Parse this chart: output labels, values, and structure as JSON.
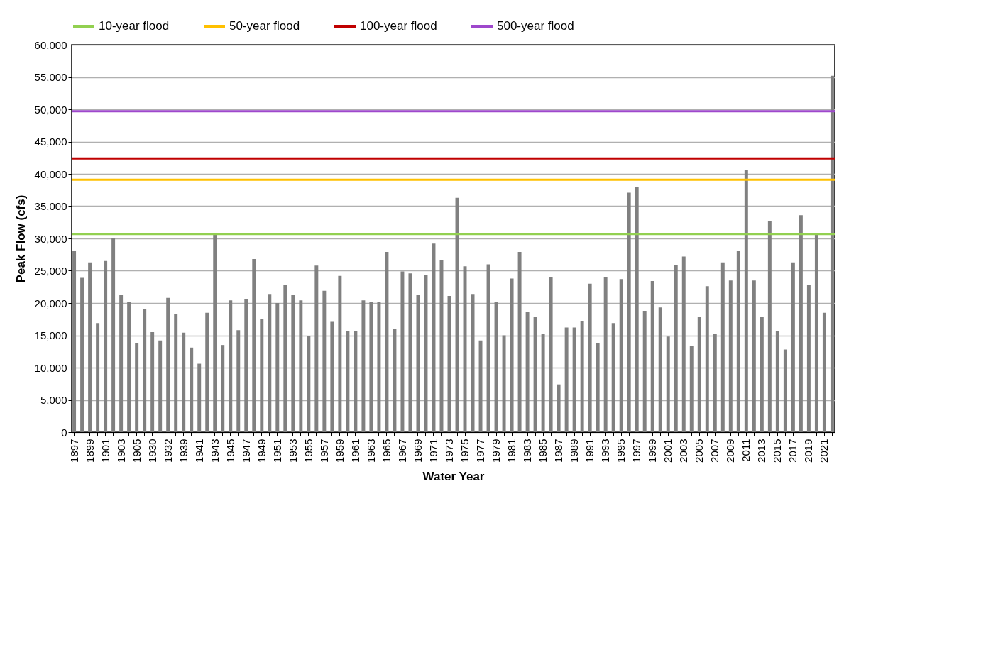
{
  "chart_data": {
    "type": "bar",
    "xlabel": "Water Year",
    "ylabel": "Peak Flow (cfs)",
    "categories": [
      "1897",
      null,
      "1899",
      null,
      "1901",
      null,
      "1903",
      null,
      "1905",
      null,
      "1930",
      null,
      "1932",
      null,
      "1939",
      null,
      "1941",
      null,
      "1943",
      null,
      "1945",
      null,
      "1947",
      null,
      "1949",
      null,
      "1951",
      null,
      "1953",
      null,
      "1955",
      null,
      "1957",
      null,
      "1959",
      null,
      "1961",
      null,
      "1963",
      null,
      "1965",
      null,
      "1967",
      null,
      "1969",
      null,
      "1971",
      null,
      "1973",
      null,
      "1975",
      null,
      "1977",
      null,
      "1979",
      null,
      "1981",
      null,
      "1983",
      null,
      "1985",
      null,
      "1987",
      null,
      "1989",
      null,
      "1991",
      null,
      "1993",
      null,
      "1995",
      null,
      "1997",
      null,
      "1999",
      null,
      "2001",
      null,
      "2003",
      null,
      "2005",
      null,
      "2007",
      null,
      "2009",
      null,
      "2011",
      null,
      "2013",
      null,
      "2015",
      null,
      "2017",
      null,
      "2019",
      null,
      "2021",
      null
    ],
    "values": [
      28100,
      23900,
      26300,
      16900,
      26500,
      30100,
      21300,
      20100,
      13800,
      19000,
      15500,
      14200,
      20800,
      18300,
      15400,
      13100,
      10600,
      18500,
      30800,
      13500,
      20400,
      15800,
      20600,
      26800,
      17500,
      21400,
      20000,
      22800,
      21200,
      20400,
      14900,
      25800,
      21900,
      17100,
      24200,
      15700,
      15600,
      20400,
      20200,
      20200,
      27900,
      16000,
      24900,
      24600,
      21200,
      24400,
      29200,
      26700,
      21100,
      36300,
      25700,
      21400,
      14200,
      26000,
      20100,
      15000,
      23800,
      27900,
      18600,
      17900,
      15200,
      24000,
      7400,
      16200,
      16200,
      17200,
      23000,
      13800,
      24000,
      16900,
      23700,
      37100,
      38000,
      18800,
      23400,
      19300,
      14800,
      25900,
      27200,
      13300,
      17900,
      22600,
      15200,
      26300,
      23500,
      28100,
      40600,
      23500,
      17900,
      32700,
      15600,
      12800,
      26300,
      33600,
      22800,
      30600,
      18500,
      55200
    ],
    "color": "#808080",
    "ylim": [
      0,
      60000
    ],
    "yticks": [
      {
        "value": 0,
        "label": "0"
      },
      {
        "value": 5000,
        "label": "5,000"
      },
      {
        "value": 10000,
        "label": "10,000"
      },
      {
        "value": 15000,
        "label": "15,000"
      },
      {
        "value": 20000,
        "label": "20,000"
      },
      {
        "value": 25000,
        "label": "25,000"
      },
      {
        "value": 30000,
        "label": "30,000"
      },
      {
        "value": 35000,
        "label": "35,000"
      },
      {
        "value": 40000,
        "label": "40,000"
      },
      {
        "value": 45000,
        "label": "45,000"
      },
      {
        "value": 50000,
        "label": "50,000"
      },
      {
        "value": 55000,
        "label": "55,000"
      },
      {
        "value": 60000,
        "label": "60,000"
      }
    ],
    "grid": "y",
    "legend": "top",
    "ref_lines": [
      {
        "axis": "y",
        "value": 30700,
        "label": "10-year flood",
        "color": "#92d050"
      },
      {
        "axis": "y",
        "value": 39100,
        "label": "50-year flood",
        "color": "#ffc000"
      },
      {
        "axis": "y",
        "value": 42400,
        "label": "100-year flood",
        "color": "#c00000"
      },
      {
        "axis": "y",
        "value": 49700,
        "label": "500-year flood",
        "color": "#9e48cc"
      }
    ]
  }
}
